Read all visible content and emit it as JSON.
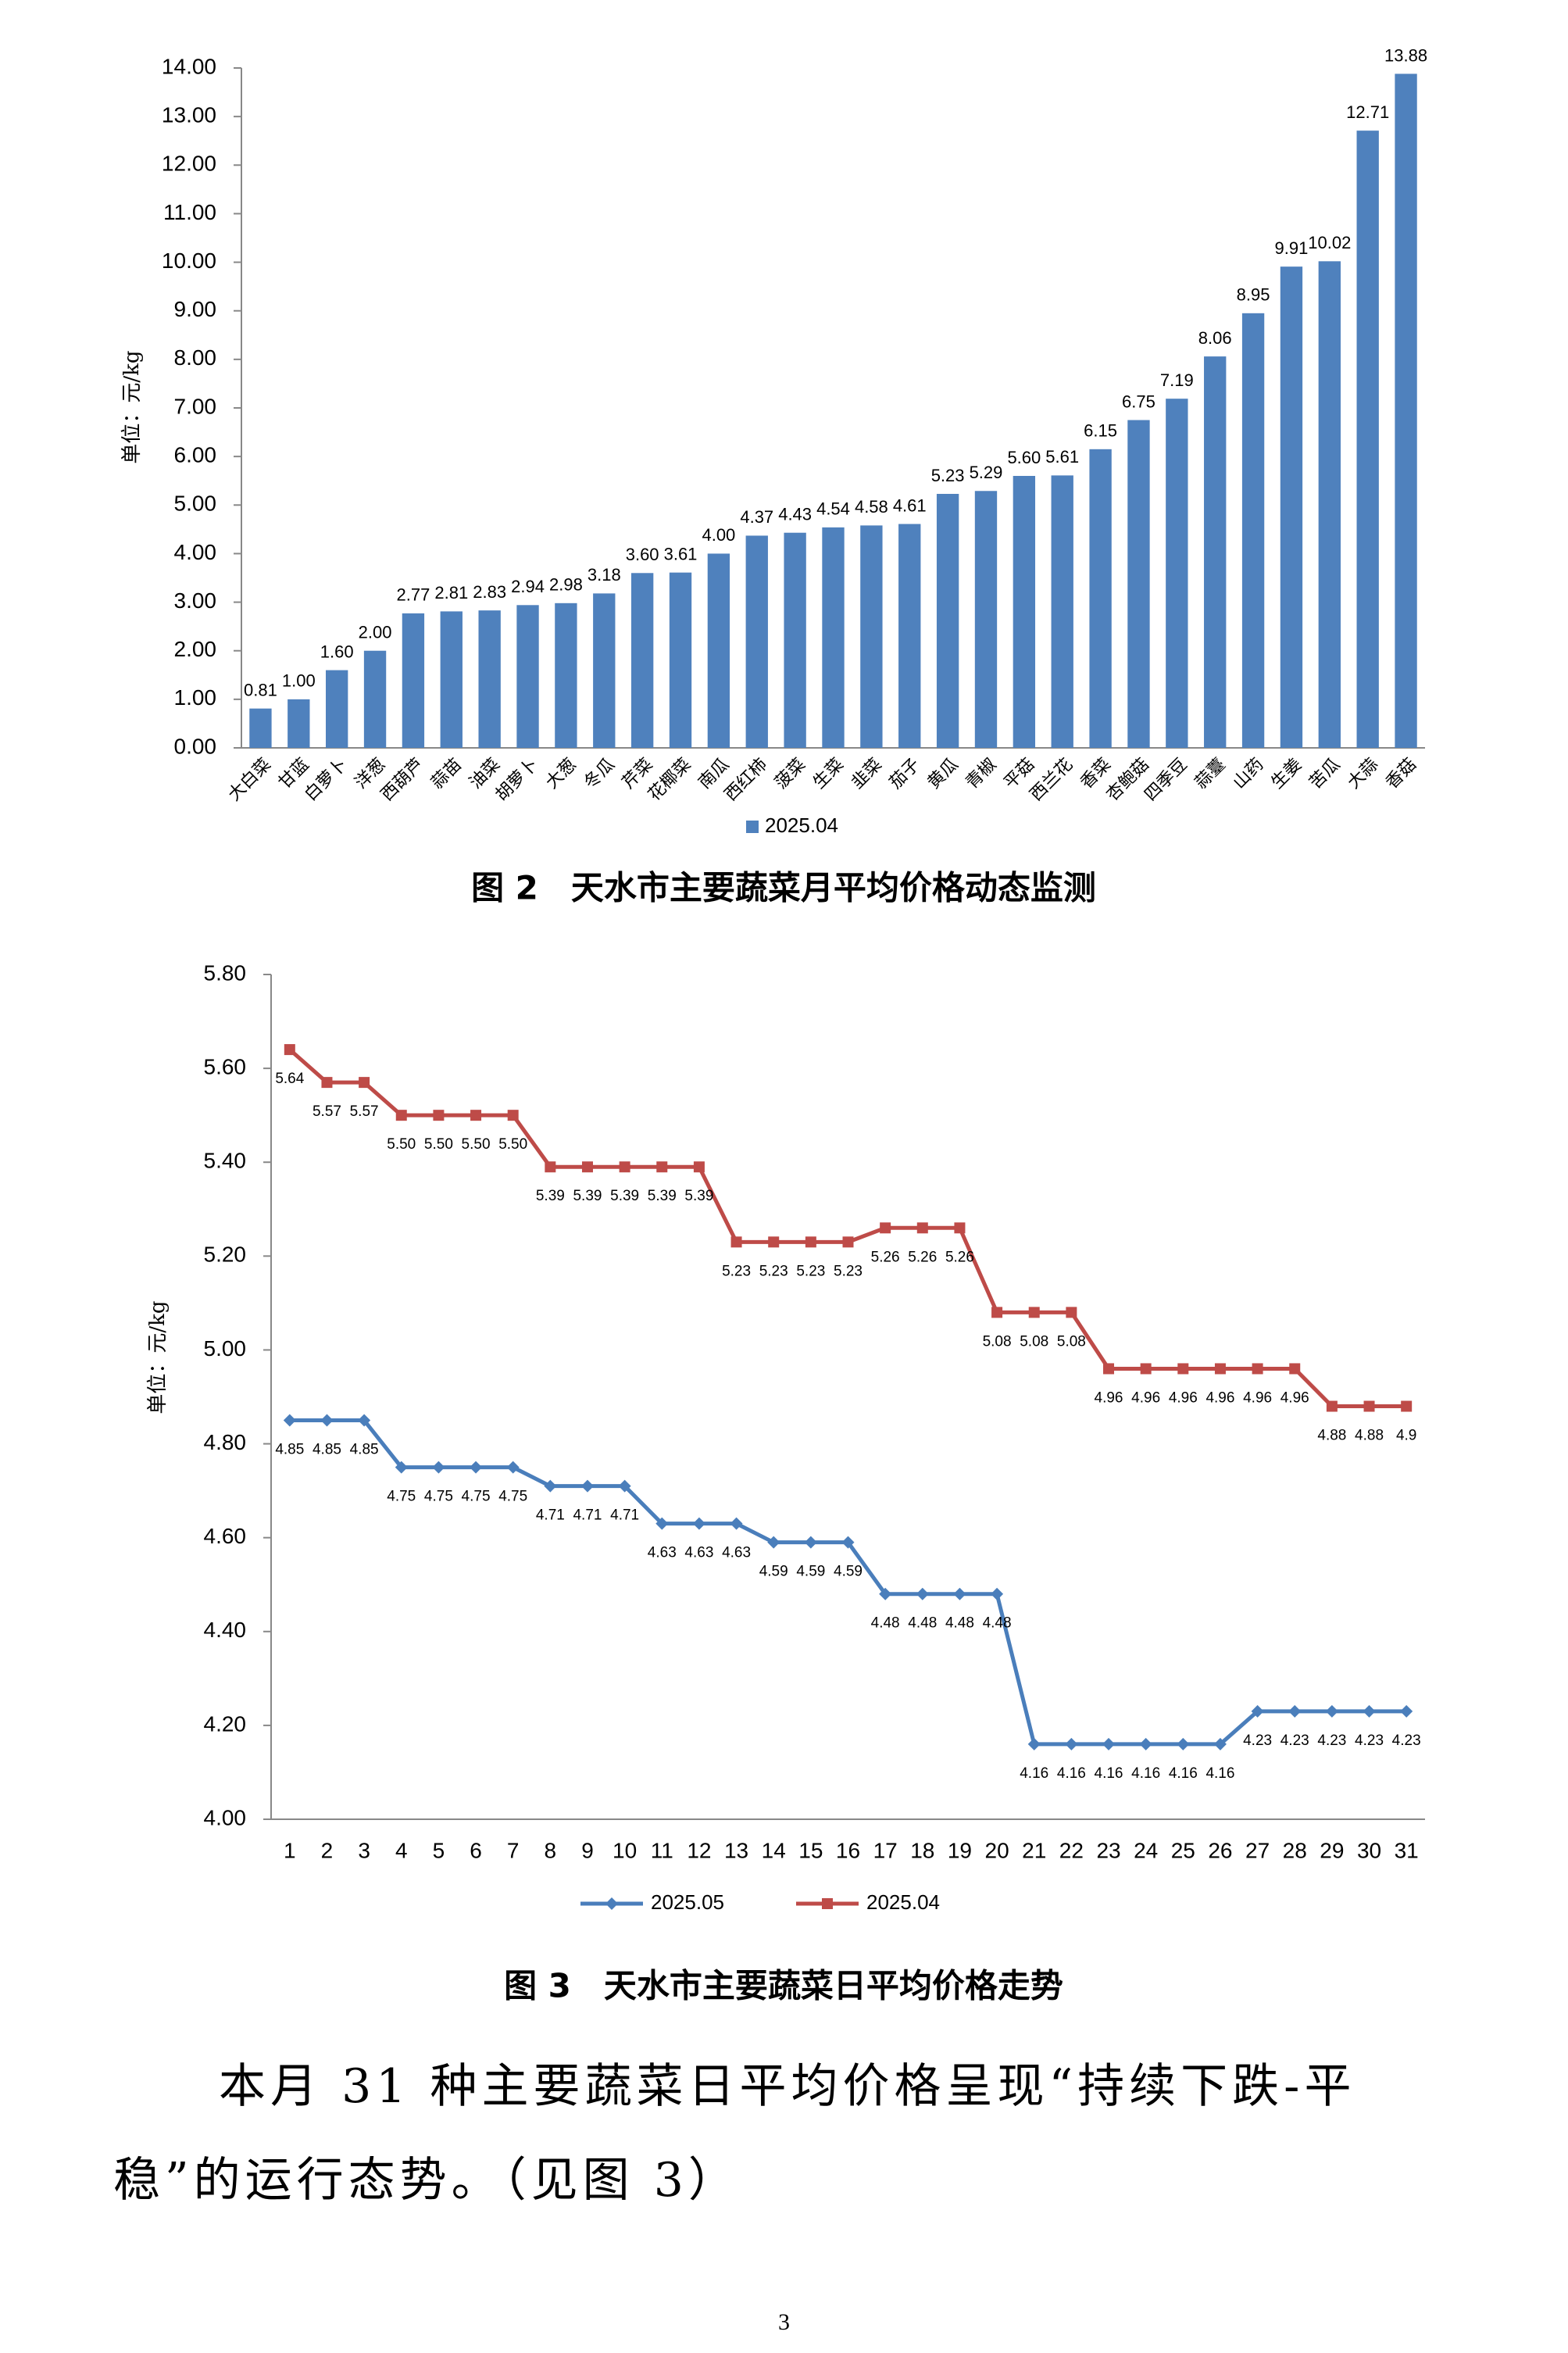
{
  "chart_data": [
    {
      "type": "bar",
      "y_label": "单位：元/kg",
      "categories": [
        "大白菜",
        "甘蓝",
        "白萝卜",
        "洋葱",
        "西葫芦",
        "蒜苗",
        "油菜",
        "胡萝卜",
        "大葱",
        "冬瓜",
        "芹菜",
        "花椰菜",
        "南瓜",
        "西红柿",
        "菠菜",
        "生菜",
        "韭菜",
        "茄子",
        "黄瓜",
        "青椒",
        "平菇",
        "西兰花",
        "香菜",
        "杏鲍菇",
        "四季豆",
        "蒜薹",
        "山药",
        "生姜",
        "苦瓜",
        "大蒜",
        "香菇"
      ],
      "series": [
        {
          "name": "2025.04",
          "color": "#4f81bd",
          "values": [
            0.81,
            1.0,
            1.6,
            2.0,
            2.77,
            2.81,
            2.83,
            2.94,
            2.98,
            3.18,
            3.6,
            3.61,
            4.0,
            4.37,
            4.43,
            4.54,
            4.58,
            4.61,
            5.23,
            5.29,
            5.6,
            5.61,
            6.15,
            6.75,
            7.19,
            8.06,
            8.95,
            9.91,
            10.02,
            12.71,
            13.88
          ],
          "value_labels": [
            "0.81",
            "1.00",
            "1.60",
            "2.00",
            "2.77",
            "2.81",
            "2.83",
            "2.94",
            "2.98",
            "3.18",
            "3.60",
            "3.61",
            "4.00",
            "4.37",
            "4.43",
            "4.54",
            "4.58",
            "4.61",
            "5.23",
            "5.29",
            "5.60",
            "5.61",
            "6.15",
            "6.75",
            "7.19",
            "8.06",
            "8.95",
            "9.91",
            "10.02",
            "12.71",
            "13.88"
          ]
        }
      ],
      "ylim": [
        0,
        14
      ],
      "yticks": [
        {
          "value": 0,
          "label": "0.00"
        },
        {
          "value": 1,
          "label": "1.00"
        },
        {
          "value": 2,
          "label": "2.00"
        },
        {
          "value": 3,
          "label": "3.00"
        },
        {
          "value": 4,
          "label": "4.00"
        },
        {
          "value": 5,
          "label": "5.00"
        },
        {
          "value": 6,
          "label": "6.00"
        },
        {
          "value": 7,
          "label": "7.00"
        },
        {
          "value": 8,
          "label": "8.00"
        },
        {
          "value": 9,
          "label": "9.00"
        },
        {
          "value": 10,
          "label": "10.00"
        },
        {
          "value": 11,
          "label": "11.00"
        },
        {
          "value": 12,
          "label": "12.00"
        },
        {
          "value": 13,
          "label": "13.00"
        },
        {
          "value": 14,
          "label": "14.00"
        }
      ],
      "grid": false,
      "legend": "bottom"
    },
    {
      "type": "line",
      "y_label": "单位：元/kg",
      "categories": [
        "1",
        "2",
        "3",
        "4",
        "5",
        "6",
        "7",
        "8",
        "9",
        "10",
        "11",
        "12",
        "13",
        "14",
        "15",
        "16",
        "17",
        "18",
        "19",
        "20",
        "21",
        "22",
        "23",
        "24",
        "25",
        "26",
        "27",
        "28",
        "29",
        "30",
        "31"
      ],
      "series": [
        {
          "name": "2025.05",
          "color": "#4a7ebb",
          "marker": "diamond",
          "values": [
            4.85,
            4.85,
            4.85,
            4.75,
            4.75,
            4.75,
            4.75,
            4.71,
            4.71,
            4.71,
            4.63,
            4.63,
            4.63,
            4.59,
            4.59,
            4.59,
            4.48,
            4.48,
            4.48,
            4.48,
            4.16,
            4.16,
            4.16,
            4.16,
            4.16,
            4.16,
            4.23,
            4.23,
            4.23,
            4.23,
            4.23
          ],
          "value_labels": [
            "4.85",
            "4.85",
            "4.85",
            "4.75",
            "4.75",
            "4.75",
            "4.75",
            "4.71",
            "4.71",
            "4.71",
            "4.63",
            "4.63",
            "4.63",
            "4.59",
            "4.59",
            "4.59",
            "4.48",
            "4.48",
            "4.48",
            "4.48",
            "4.16",
            "4.16",
            "4.16",
            "4.16",
            "4.16",
            "4.16",
            "4.23",
            "4.23",
            "4.23",
            "4.23",
            "4.23"
          ]
        },
        {
          "name": "2025.04",
          "color": "#be4b48",
          "marker": "square",
          "values": [
            5.64,
            5.57,
            5.57,
            5.5,
            5.5,
            5.5,
            5.5,
            5.39,
            5.39,
            5.39,
            5.39,
            5.39,
            5.23,
            5.23,
            5.23,
            5.23,
            5.26,
            5.26,
            5.26,
            5.08,
            5.08,
            5.08,
            4.96,
            4.96,
            4.96,
            4.96,
            4.96,
            4.96,
            4.88,
            4.88,
            4.88
          ],
          "value_labels": [
            "5.64",
            "5.57",
            "5.57",
            "5.50",
            "5.50",
            "5.50",
            "5.50",
            "5.39",
            "5.39",
            "5.39",
            "5.39",
            "5.39",
            "5.23",
            "5.23",
            "5.23",
            "5.23",
            "5.26",
            "5.26",
            "5.26",
            "5.08",
            "5.08",
            "5.08",
            "4.96",
            "4.96",
            "4.96",
            "4.96",
            "4.96",
            "4.96",
            "4.88",
            "4.88",
            "4.9"
          ]
        }
      ],
      "ylim": [
        4,
        5.8
      ],
      "yticks": [
        {
          "value": 4,
          "label": "4.00"
        },
        {
          "value": 4.2,
          "label": "4.20"
        },
        {
          "value": 4.4,
          "label": "4.40"
        },
        {
          "value": 4.6,
          "label": "4.60"
        },
        {
          "value": 4.8,
          "label": "4.80"
        },
        {
          "value": 5,
          "label": "5.00"
        },
        {
          "value": 5.2,
          "label": "5.20"
        },
        {
          "value": 5.4,
          "label": "5.40"
        },
        {
          "value": 5.6,
          "label": "5.60"
        },
        {
          "value": 5.8,
          "label": "5.80"
        }
      ],
      "grid": false,
      "legend": "bottom"
    }
  ],
  "document": {
    "caption_fig2": "图 2　天水市主要蔬菜月平均价格动态监测",
    "caption_fig3": "图 3　天水市主要蔬菜日平均价格走势",
    "paragraph": "本月 31 种主要蔬菜日平均价格呈现“持续下跌-平稳”的运行态势。（见图 3）",
    "page_number": "3"
  }
}
